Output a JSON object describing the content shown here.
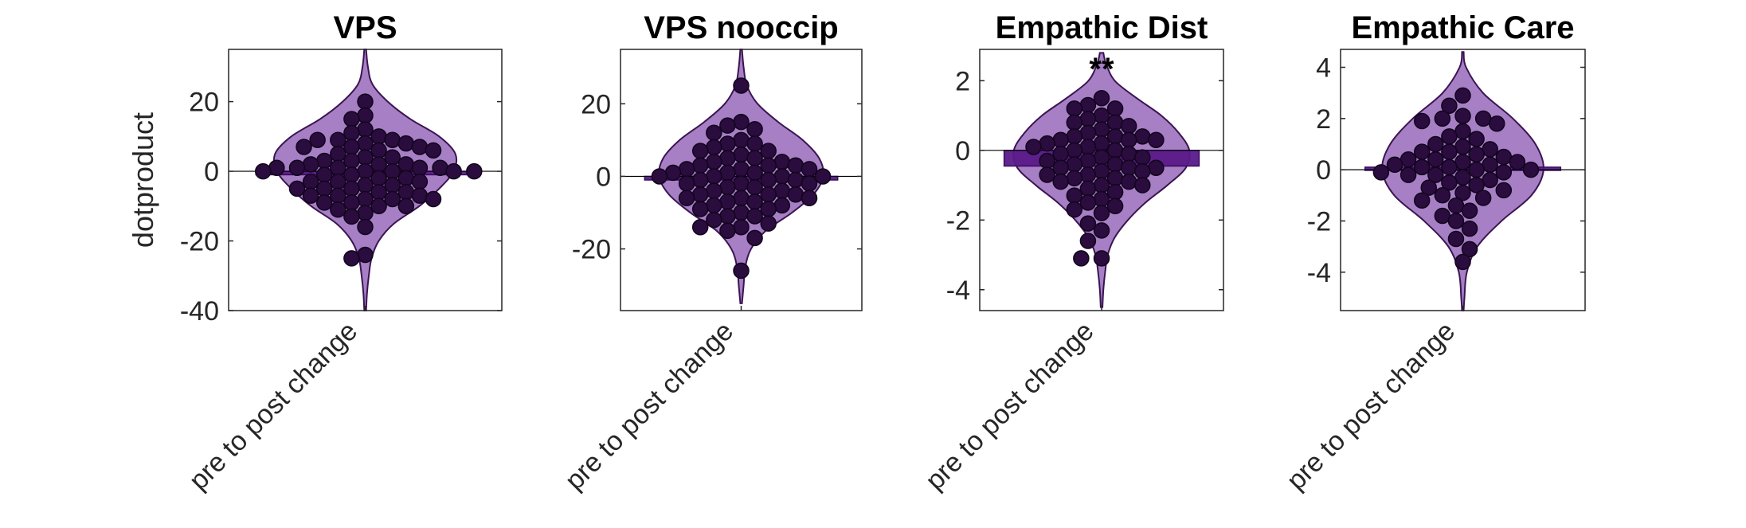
{
  "chart_data": [
    {
      "type": "violin",
      "title": "VPS",
      "ylabel": "dotproduct",
      "categories": [
        "pre to post change"
      ],
      "ylim": [
        -40,
        35
      ],
      "yticks": [
        -40,
        -20,
        0,
        20
      ],
      "mean": -1,
      "annotation": "",
      "density": [
        [
          35,
          0.01
        ],
        [
          30,
          0.03
        ],
        [
          25,
          0.08
        ],
        [
          20,
          0.25
        ],
        [
          15,
          0.5
        ],
        [
          10,
          0.82
        ],
        [
          5,
          1
        ],
        [
          0,
          0.98
        ],
        [
          -5,
          0.82
        ],
        [
          -10,
          0.6
        ],
        [
          -15,
          0.32
        ],
        [
          -20,
          0.15
        ],
        [
          -25,
          0.07
        ],
        [
          -30,
          0.04
        ],
        [
          -35,
          0.02
        ],
        [
          -40,
          0.01
        ]
      ],
      "points": [
        20,
        16,
        15,
        12,
        11,
        10,
        9,
        9,
        9,
        8,
        8,
        7,
        7,
        7,
        6,
        6,
        5,
        4,
        4,
        3,
        3,
        2,
        2,
        2,
        1,
        1,
        1,
        1,
        1,
        0,
        0,
        0,
        0,
        0,
        -1,
        -1,
        -2,
        -2,
        -3,
        -3,
        -3,
        -4,
        -4,
        -5,
        -5,
        -5,
        -6,
        -6,
        -7,
        -7,
        -7,
        -8,
        -8,
        -8,
        -9,
        -9,
        -10,
        -10,
        -11,
        -12,
        -13,
        -16,
        -24,
        -25
      ]
    },
    {
      "type": "violin",
      "title": "VPS nooccip",
      "ylabel": "",
      "categories": [
        "pre to post change"
      ],
      "ylim": [
        -37,
        35
      ],
      "yticks": [
        -20,
        0,
        20
      ],
      "mean": -1,
      "annotation": "",
      "density": [
        [
          35,
          0.01
        ],
        [
          30,
          0.03
        ],
        [
          25,
          0.07
        ],
        [
          20,
          0.2
        ],
        [
          15,
          0.45
        ],
        [
          10,
          0.75
        ],
        [
          5,
          0.95
        ],
        [
          0,
          1
        ],
        [
          -5,
          0.88
        ],
        [
          -10,
          0.62
        ],
        [
          -15,
          0.3
        ],
        [
          -20,
          0.12
        ],
        [
          -25,
          0.05
        ],
        [
          -30,
          0.03
        ],
        [
          -35,
          0.01
        ]
      ],
      "points": [
        25,
        15,
        14,
        13,
        12,
        10,
        9,
        9,
        8,
        7,
        7,
        6,
        5,
        5,
        4,
        4,
        3,
        3,
        3,
        2,
        2,
        2,
        1,
        1,
        1,
        0,
        0,
        0,
        0,
        -1,
        -1,
        -1,
        -2,
        -2,
        -2,
        -3,
        -3,
        -4,
        -4,
        -5,
        -5,
        -5,
        -6,
        -6,
        -6,
        -7,
        -7,
        -8,
        -8,
        -9,
        -9,
        -10,
        -11,
        -11,
        -12,
        -13,
        -14,
        -14,
        -15,
        -17,
        -26
      ]
    },
    {
      "type": "violin",
      "title": "Empathic Dist",
      "ylabel": "",
      "categories": [
        "pre to post change"
      ],
      "ylim": [
        -4.6,
        2.9
      ],
      "yticks": [
        -4,
        -2,
        0,
        2
      ],
      "mean": -0.45,
      "annotation": "**",
      "density": [
        [
          2.8,
          0.02
        ],
        [
          2.5,
          0.05
        ],
        [
          2,
          0.15
        ],
        [
          1.5,
          0.4
        ],
        [
          1,
          0.68
        ],
        [
          0.5,
          0.88
        ],
        [
          0,
          1
        ],
        [
          -0.5,
          0.96
        ],
        [
          -1,
          0.75
        ],
        [
          -1.5,
          0.5
        ],
        [
          -2,
          0.3
        ],
        [
          -2.5,
          0.15
        ],
        [
          -3,
          0.07
        ],
        [
          -3.5,
          0.04
        ],
        [
          -4,
          0.02
        ],
        [
          -4.5,
          0.01
        ]
      ],
      "points": [
        1.5,
        1.3,
        1.2,
        1.2,
        1.0,
        0.9,
        0.8,
        0.8,
        0.7,
        0.6,
        0.5,
        0.4,
        0.4,
        0.4,
        0.3,
        0.3,
        0.3,
        0.2,
        0.2,
        0.1,
        0.1,
        0.0,
        0.0,
        -0.1,
        -0.1,
        -0.2,
        -0.2,
        -0.3,
        -0.3,
        -0.4,
        -0.4,
        -0.5,
        -0.5,
        -0.5,
        -0.6,
        -0.6,
        -0.7,
        -0.7,
        -0.8,
        -0.8,
        -0.9,
        -0.9,
        -1.0,
        -1.0,
        -1.1,
        -1.2,
        -1.3,
        -1.4,
        -1.5,
        -1.6,
        -1.7,
        -1.8,
        -2.1,
        -2.3,
        -2.6,
        -3.1,
        -3.1
      ]
    },
    {
      "type": "violin",
      "title": "Empathic Care",
      "ylabel": "",
      "categories": [
        "pre to post change"
      ],
      "ylim": [
        -5.5,
        4.7
      ],
      "yticks": [
        -4,
        -2,
        0,
        2,
        4
      ],
      "mean": 0.1,
      "annotation": "",
      "density": [
        [
          4.6,
          0.01
        ],
        [
          4,
          0.04
        ],
        [
          3,
          0.25
        ],
        [
          2,
          0.62
        ],
        [
          1,
          0.9
        ],
        [
          0,
          1
        ],
        [
          -1,
          0.85
        ],
        [
          -2,
          0.48
        ],
        [
          -3,
          0.18
        ],
        [
          -4,
          0.05
        ],
        [
          -5,
          0.02
        ],
        [
          -5.5,
          0.01
        ]
      ],
      "points": [
        2.9,
        2.5,
        2.1,
        2.0,
        2.0,
        1.9,
        1.8,
        1.5,
        1.3,
        1.2,
        1.0,
        0.9,
        0.8,
        0.7,
        0.7,
        0.6,
        0.5,
        0.4,
        0.4,
        0.3,
        0.3,
        0.2,
        0.2,
        0.1,
        0.1,
        0.0,
        0.0,
        -0.1,
        -0.1,
        -0.2,
        -0.2,
        -0.3,
        -0.4,
        -0.5,
        -0.6,
        -0.7,
        -0.8,
        -0.9,
        -1.0,
        -1.1,
        -1.2,
        -1.4,
        -1.6,
        -1.8,
        -2.0,
        -2.3,
        -2.7,
        -3.1,
        -3.6
      ]
    }
  ],
  "colors": {
    "violin_fill": "#a67fc4",
    "violin_edge": "#3b1452",
    "point_fill": "#2a0c3e",
    "point_edge": "#12051d",
    "mean_bar_fill": "#5a1a8a",
    "mean_bar_edge": "#3a0a60",
    "axis": "#262626",
    "zero_line": "#000000"
  }
}
